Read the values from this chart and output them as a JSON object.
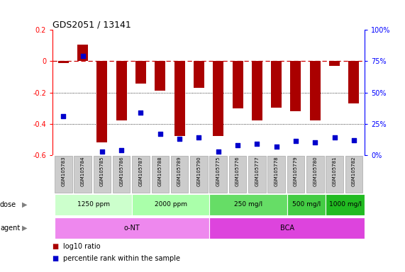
{
  "title": "GDS2051 / 13141",
  "samples": [
    "GSM105783",
    "GSM105784",
    "GSM105785",
    "GSM105786",
    "GSM105787",
    "GSM105788",
    "GSM105789",
    "GSM105790",
    "GSM105775",
    "GSM105776",
    "GSM105777",
    "GSM105778",
    "GSM105779",
    "GSM105780",
    "GSM105781",
    "GSM105782"
  ],
  "log10_ratio": [
    -0.01,
    0.105,
    -0.52,
    -0.38,
    -0.145,
    -0.19,
    -0.48,
    -0.17,
    -0.48,
    -0.3,
    -0.38,
    -0.295,
    -0.32,
    -0.38,
    -0.03,
    -0.27
  ],
  "percentile_rank": [
    31,
    79,
    3,
    4,
    34,
    17,
    13,
    14,
    3,
    8,
    9,
    7,
    11,
    10,
    14,
    12
  ],
  "ylim": [
    -0.6,
    0.2
  ],
  "y2lim": [
    0,
    100
  ],
  "yticks": [
    -0.6,
    -0.4,
    -0.2,
    0.0,
    0.2
  ],
  "y2ticks": [
    0,
    25,
    50,
    75,
    100
  ],
  "y2ticklabels": [
    "0%",
    "25%",
    "50%",
    "75%",
    "100%"
  ],
  "bar_color": "#aa0000",
  "dot_color": "#0000cc",
  "dashed_color": "#cc0000",
  "dose_groups": [
    {
      "label": "1250 ppm",
      "start": 0,
      "end": 4,
      "color": "#ccffcc"
    },
    {
      "label": "2000 ppm",
      "start": 4,
      "end": 8,
      "color": "#aaffaa"
    },
    {
      "label": "250 mg/l",
      "start": 8,
      "end": 12,
      "color": "#66dd66"
    },
    {
      "label": "500 mg/l",
      "start": 12,
      "end": 14,
      "color": "#44cc44"
    },
    {
      "label": "1000 mg/l",
      "start": 14,
      "end": 16,
      "color": "#22bb22"
    }
  ],
  "agent_groups": [
    {
      "label": "o-NT",
      "start": 0,
      "end": 8,
      "color": "#ee88ee"
    },
    {
      "label": "BCA",
      "start": 8,
      "end": 16,
      "color": "#dd44dd"
    }
  ],
  "legend_items": [
    {
      "label": "log10 ratio",
      "color": "#aa0000"
    },
    {
      "label": "percentile rank within the sample",
      "color": "#0000cc"
    }
  ],
  "bg_color": "#ffffff",
  "label_box_color": "#cccccc",
  "label_box_edge": "#999999",
  "grid_dotted_color": "#000000",
  "dose_label_color": "#000000",
  "agent_label_color": "#000000",
  "dose_font_size": 6.5,
  "agent_font_size": 7,
  "title_fontsize": 9,
  "tick_fontsize": 7,
  "legend_fontsize": 7,
  "sample_fontsize": 5
}
